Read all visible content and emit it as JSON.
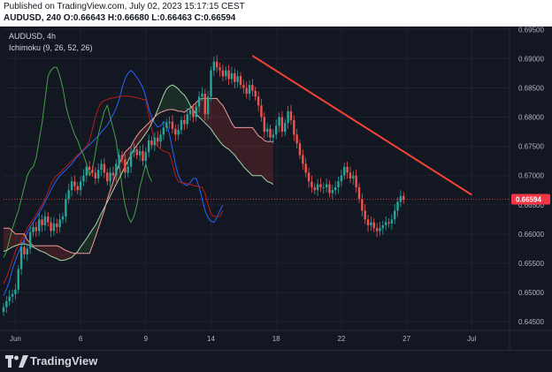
{
  "header": {
    "published": "Published on TradingView.com, July 02, 2023 15:17:15 CEST",
    "ohlc": "AUDUSD, 240  O:0.66643 H:0.66680 L:0.66463 C:0.66594"
  },
  "legend": {
    "symbol": "AUDUSD, 4h",
    "indicator": "Ichimoku (9, 26, 52, 26)"
  },
  "footer": {
    "brand": "TradingView"
  },
  "colors": {
    "bull": "#26a69a",
    "bear": "#ef5350",
    "tenkan": "#2962ff",
    "kijun": "#b71c1c",
    "chikou": "#43a047",
    "spanA": "#a5d6a7",
    "spanB": "#ef9a9a",
    "trend": "#f44336",
    "last": "#f23645"
  },
  "chart_data": {
    "type": "candlestick",
    "symbol": "AUDUSD",
    "timeframe": "4h",
    "ylim": [
      0.6435,
      0.6955
    ],
    "y_ticks": [
      "0.69500",
      "0.69000",
      "0.68500",
      "0.68000",
      "0.67500",
      "0.67000",
      "0.66500",
      "0.66000",
      "0.65500",
      "0.65000",
      "0.64500"
    ],
    "y_tick_values": [
      0.695,
      0.69,
      0.685,
      0.68,
      0.675,
      0.67,
      0.665,
      0.66,
      0.655,
      0.65,
      0.645
    ],
    "x_ticks": [
      "Jun",
      "6",
      "9",
      "14",
      "18",
      "22",
      "27",
      "Jul"
    ],
    "x_tick_index": [
      4,
      26,
      48,
      70,
      92,
      114,
      136,
      158
    ],
    "last_price": "0.66594",
    "last_price_value": 0.66594,
    "close": [
      0.6475,
      0.6485,
      0.6493,
      0.6497,
      0.6505,
      0.654,
      0.6578,
      0.6565,
      0.6575,
      0.6603,
      0.6612,
      0.6605,
      0.6625,
      0.6615,
      0.663,
      0.662,
      0.6605,
      0.6618,
      0.6612,
      0.6625,
      0.663,
      0.666,
      0.6675,
      0.669,
      0.6682,
      0.6675,
      0.669,
      0.67,
      0.6715,
      0.671,
      0.6705,
      0.6695,
      0.671,
      0.672,
      0.6705,
      0.669,
      0.6705,
      0.67,
      0.672,
      0.6735,
      0.6728,
      0.6705,
      0.6715,
      0.674,
      0.6745,
      0.6735,
      0.6742,
      0.6725,
      0.674,
      0.676,
      0.6752,
      0.6765,
      0.6758,
      0.677,
      0.6782,
      0.679,
      0.6792,
      0.678,
      0.677,
      0.6778,
      0.6795,
      0.6788,
      0.6805,
      0.6812,
      0.68,
      0.6818,
      0.6835,
      0.684,
      0.6805,
      0.6835,
      0.688,
      0.6895,
      0.6885,
      0.688,
      0.687,
      0.688,
      0.6865,
      0.6875,
      0.686,
      0.687,
      0.6855,
      0.685,
      0.684,
      0.6855,
      0.6845,
      0.6835,
      0.682,
      0.68,
      0.6775,
      0.678,
      0.6765,
      0.677,
      0.6785,
      0.68,
      0.6775,
      0.679,
      0.681,
      0.6795,
      0.677,
      0.6755,
      0.6735,
      0.672,
      0.6705,
      0.669,
      0.668,
      0.6675,
      0.6685,
      0.668,
      0.668,
      0.6685,
      0.667,
      0.6675,
      0.668,
      0.669,
      0.67,
      0.6715,
      0.6705,
      0.6695,
      0.67,
      0.668,
      0.666,
      0.664,
      0.6625,
      0.6615,
      0.662,
      0.661,
      0.6605,
      0.661,
      0.6615,
      0.662,
      0.6618,
      0.6625,
      0.664,
      0.6655,
      0.6665,
      0.6659
    ],
    "trendline": {
      "x_index": [
        84,
        158
      ],
      "y": [
        0.6905,
        0.6667
      ]
    },
    "series": [
      {
        "name": "Tenkan",
        "x0": 0,
        "values": [
          0.6495,
          0.6505,
          0.652,
          0.654,
          0.6555,
          0.6568,
          0.658,
          0.659,
          0.6602,
          0.6612,
          0.662,
          0.6628,
          0.6636,
          0.6645,
          0.6655,
          0.6665,
          0.6675,
          0.6685,
          0.6693,
          0.67,
          0.6705,
          0.671,
          0.6715,
          0.672,
          0.6727,
          0.6733,
          0.6738,
          0.6743,
          0.6748,
          0.6753,
          0.6758,
          0.6763,
          0.6768,
          0.6774,
          0.678,
          0.6786,
          0.6795,
          0.6805,
          0.6815,
          0.683,
          0.685,
          0.6865,
          0.6875,
          0.688,
          0.6875,
          0.6868,
          0.686,
          0.685,
          0.6835,
          0.6815,
          0.68,
          0.679,
          0.6783,
          0.6785,
          0.6792,
          0.679,
          0.677,
          0.6745,
          0.672,
          0.67,
          0.669,
          0.6685,
          0.6683,
          0.6688,
          0.6695,
          0.6695,
          0.668,
          0.666,
          0.664,
          0.6628,
          0.6622,
          0.662,
          0.6628,
          0.664,
          0.665
        ]
      },
      {
        "name": "Kijun",
        "x0": 0,
        "values": [
          0.6515,
          0.6525,
          0.654,
          0.6555,
          0.657,
          0.658,
          0.659,
          0.66,
          0.661,
          0.6618,
          0.6625,
          0.6633,
          0.6642,
          0.665,
          0.666,
          0.6672,
          0.6685,
          0.6695,
          0.67,
          0.6705,
          0.671,
          0.6715,
          0.672,
          0.6725,
          0.673,
          0.6735,
          0.674,
          0.6745,
          0.675,
          0.676,
          0.678,
          0.68,
          0.6815,
          0.6825,
          0.6828,
          0.683,
          0.6832,
          0.6833,
          0.6834,
          0.6835,
          0.6836,
          0.6836,
          0.6836,
          0.6835,
          0.6834,
          0.6833,
          0.6832,
          0.683,
          0.683,
          0.6805,
          0.678,
          0.676,
          0.675,
          0.6745,
          0.6742,
          0.674,
          0.6738,
          0.672,
          0.67,
          0.669,
          0.6688,
          0.6687,
          0.6686,
          0.6685,
          0.6683,
          0.6682,
          0.6681,
          0.668,
          0.667,
          0.665,
          0.6635,
          0.663,
          0.663,
          0.663,
          0.664
        ]
      },
      {
        "name": "Chikou",
        "x0": 0,
        "values": [
          0.656,
          0.657,
          0.659,
          0.661,
          0.6625,
          0.664,
          0.666,
          0.668,
          0.67,
          0.671,
          0.6715,
          0.673,
          0.676,
          0.679,
          0.683,
          0.687,
          0.688,
          0.6885,
          0.6885,
          0.687,
          0.685,
          0.682,
          0.68,
          0.6785,
          0.677,
          0.676,
          0.6745,
          0.6735,
          0.672,
          0.67,
          0.671,
          0.674,
          0.677,
          0.679,
          0.681,
          0.682,
          0.68,
          0.678,
          0.676,
          0.672,
          0.668,
          0.665,
          0.663,
          0.662,
          0.663,
          0.665,
          0.668,
          0.67,
          0.672,
          0.67,
          0.669
        ]
      },
      {
        "name": "Senkou A",
        "x0": 0,
        "values": [
          0.657,
          0.6572,
          0.6575,
          0.6578,
          0.658,
          0.6582,
          0.6583,
          0.6583,
          0.6582,
          0.658,
          0.6578,
          0.6575,
          0.6572,
          0.657,
          0.6568,
          0.6565,
          0.6562,
          0.656,
          0.6558,
          0.6555,
          0.6555,
          0.6556,
          0.6558,
          0.656,
          0.6565,
          0.657,
          0.6578,
          0.6585,
          0.6592,
          0.66,
          0.6608,
          0.6615,
          0.6625,
          0.6635,
          0.6645,
          0.6655,
          0.6665,
          0.6675,
          0.6685,
          0.6695,
          0.6705,
          0.6715,
          0.6725,
          0.6735,
          0.6745,
          0.6752,
          0.6758,
          0.6765,
          0.6772,
          0.678,
          0.679,
          0.68,
          0.6812,
          0.6825,
          0.6838,
          0.6848,
          0.6853,
          0.6855,
          0.6852,
          0.6848,
          0.6842,
          0.6838,
          0.683,
          0.682,
          0.6812,
          0.6805,
          0.68,
          0.6795,
          0.679,
          0.6785,
          0.678,
          0.6772,
          0.6765,
          0.6758,
          0.6752,
          0.6748,
          0.6745,
          0.674,
          0.6735,
          0.6728,
          0.6722,
          0.6715,
          0.671,
          0.6705,
          0.67,
          0.67,
          0.67,
          0.67,
          0.6695,
          0.669,
          0.6688,
          0.6685
        ]
      },
      {
        "name": "Senkou B",
        "x0": 0,
        "values": [
          0.661,
          0.661,
          0.661,
          0.6605,
          0.66,
          0.66,
          0.66,
          0.66,
          0.659,
          0.6585,
          0.658,
          0.658,
          0.658,
          0.658,
          0.658,
          0.658,
          0.658,
          0.658,
          0.658,
          0.6578,
          0.6575,
          0.6572,
          0.657,
          0.6568,
          0.6567,
          0.6567,
          0.6567,
          0.6567,
          0.6567,
          0.6567,
          0.658,
          0.6595,
          0.661,
          0.6625,
          0.664,
          0.666,
          0.6675,
          0.669,
          0.6705,
          0.672,
          0.673,
          0.674,
          0.6745,
          0.675,
          0.676,
          0.6768,
          0.6775,
          0.678,
          0.6785,
          0.679,
          0.6795,
          0.68,
          0.6805,
          0.6808,
          0.681,
          0.6812,
          0.6813,
          0.6813,
          0.6812,
          0.681,
          0.681,
          0.6808,
          0.6812,
          0.6815,
          0.682,
          0.6825,
          0.683,
          0.6832,
          0.6832,
          0.6832,
          0.6832,
          0.6832,
          0.6832,
          0.6825,
          0.682,
          0.681,
          0.68,
          0.679,
          0.6782,
          0.6782,
          0.6782,
          0.6782,
          0.6782,
          0.6782,
          0.6782,
          0.6775,
          0.6768,
          0.6765,
          0.676,
          0.6758,
          0.6758,
          0.6758
        ]
      }
    ]
  }
}
